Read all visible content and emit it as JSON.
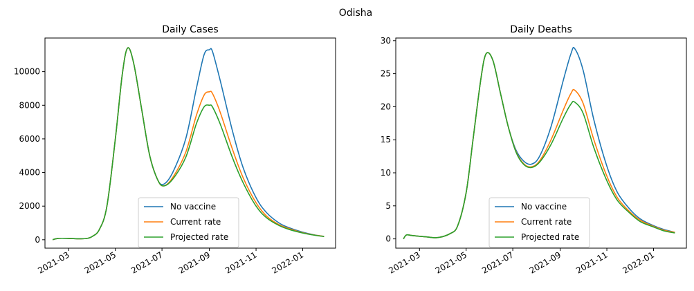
{
  "figure_title": "Odisha",
  "chart_data": [
    {
      "type": "line",
      "title": "Daily Cases",
      "xlabel": "",
      "ylabel": "",
      "ylim": [
        -500,
        12000
      ],
      "xlim": [
        "2021-01-29",
        "2022-02-13"
      ],
      "yticks": [
        0,
        2000,
        4000,
        6000,
        8000,
        10000
      ],
      "xticks": [
        "2021-03",
        "2021-05",
        "2021-07",
        "2021-09",
        "2021-11",
        "2022-01"
      ],
      "grid": false,
      "legend_position": "lower center",
      "x": [
        "2021-02-08",
        "2021-02-15",
        "2021-03-01",
        "2021-03-15",
        "2021-03-25",
        "2021-04-01",
        "2021-04-10",
        "2021-04-20",
        "2021-05-01",
        "2021-05-10",
        "2021-05-17",
        "2021-05-25",
        "2021-06-05",
        "2021-06-15",
        "2021-06-25",
        "2021-07-03",
        "2021-07-15",
        "2021-08-01",
        "2021-08-15",
        "2021-08-25",
        "2021-09-01",
        "2021-09-05",
        "2021-09-15",
        "2021-10-01",
        "2021-10-15",
        "2021-11-01",
        "2021-11-15",
        "2021-12-01",
        "2021-12-15",
        "2022-01-01",
        "2022-01-15",
        "2022-01-29"
      ],
      "series": [
        {
          "name": "No vaccine",
          "color": "#1f77b4",
          "values": [
            0,
            80,
            80,
            60,
            80,
            200,
            600,
            2000,
            6000,
            9800,
            11400,
            10500,
            7600,
            5000,
            3600,
            3300,
            4000,
            6000,
            9000,
            11000,
            11300,
            11200,
            9500,
            6500,
            4300,
            2500,
            1600,
            1000,
            700,
            450,
            300,
            200
          ]
        },
        {
          "name": "Current rate",
          "color": "#ff7f0e",
          "values": [
            0,
            80,
            80,
            60,
            80,
            200,
            600,
            2000,
            6000,
            9800,
            11400,
            10500,
            7600,
            5000,
            3600,
            3200,
            3700,
            5200,
            7400,
            8600,
            8800,
            8700,
            7600,
            5400,
            3700,
            2200,
            1400,
            900,
            650,
            420,
            290,
            200
          ]
        },
        {
          "name": "Projected rate",
          "color": "#2ca02c",
          "values": [
            0,
            80,
            80,
            60,
            80,
            200,
            600,
            2000,
            6000,
            9800,
            11400,
            10500,
            7600,
            5000,
            3600,
            3200,
            3600,
            4900,
            6900,
            7900,
            8000,
            7900,
            6900,
            4900,
            3400,
            2000,
            1300,
            850,
            600,
            400,
            280,
            190
          ]
        }
      ]
    },
    {
      "type": "line",
      "title": "Daily Deaths",
      "xlabel": "",
      "ylabel": "",
      "ylim": [
        -1.4,
        30.4
      ],
      "xlim": [
        "2021-01-29",
        "2022-02-13"
      ],
      "yticks": [
        0,
        5,
        10,
        15,
        20,
        25,
        30
      ],
      "xticks": [
        "2021-03",
        "2021-05",
        "2021-07",
        "2021-09",
        "2021-11",
        "2022-01"
      ],
      "grid": false,
      "legend_position": "lower center",
      "x": [
        "2021-02-08",
        "2021-02-12",
        "2021-02-20",
        "2021-03-10",
        "2021-03-25",
        "2021-04-10",
        "2021-04-20",
        "2021-05-01",
        "2021-05-10",
        "2021-05-20",
        "2021-05-27",
        "2021-06-05",
        "2021-06-15",
        "2021-06-25",
        "2021-07-05",
        "2021-07-15",
        "2021-07-25",
        "2021-08-05",
        "2021-08-20",
        "2021-09-05",
        "2021-09-15",
        "2021-09-20",
        "2021-10-01",
        "2021-10-15",
        "2021-11-01",
        "2021-11-15",
        "2021-12-01",
        "2021-12-15",
        "2022-01-01",
        "2022-01-15",
        "2022-01-29"
      ],
      "series": [
        {
          "name": "No vaccine",
          "color": "#1f77b4",
          "values": [
            0,
            0.6,
            0.5,
            0.3,
            0.2,
            0.8,
            2.0,
            7,
            15,
            24,
            28,
            27,
            22,
            17,
            13.5,
            11.8,
            11.3,
            12.5,
            17,
            24,
            28,
            28.8,
            25.5,
            18,
            11,
            7,
            4.5,
            3,
            2,
            1.4,
            1
          ]
        },
        {
          "name": "Current rate",
          "color": "#ff7f0e",
          "values": [
            0,
            0.6,
            0.5,
            0.3,
            0.2,
            0.8,
            2.0,
            7,
            15,
            24,
            28,
            27,
            22,
            17,
            13.3,
            11.4,
            10.9,
            11.8,
            15,
            19.5,
            22,
            22.5,
            20.5,
            15,
            9.5,
            6.2,
            4.1,
            2.8,
            1.9,
            1.3,
            1
          ]
        },
        {
          "name": "Projected rate",
          "color": "#2ca02c",
          "values": [
            0,
            0.6,
            0.5,
            0.3,
            0.2,
            0.8,
            2.0,
            7,
            15,
            24,
            28,
            27,
            22,
            17,
            13.2,
            11.3,
            10.8,
            11.6,
            14.3,
            18.3,
            20.4,
            20.7,
            19,
            13.8,
            8.8,
            5.8,
            3.9,
            2.6,
            1.8,
            1.2,
            0.9
          ]
        }
      ]
    }
  ]
}
